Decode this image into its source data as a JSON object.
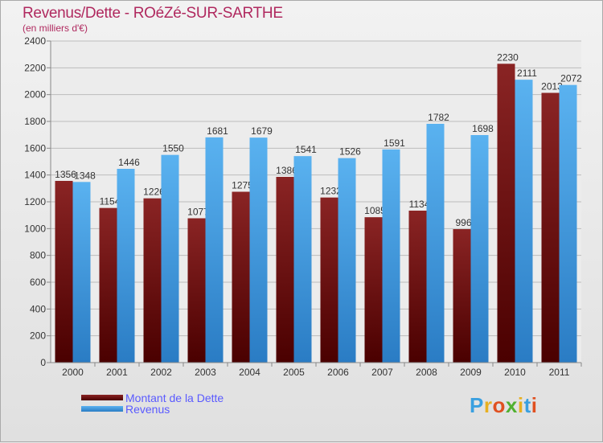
{
  "chart_data": {
    "type": "bar",
    "title": "Revenus/Dette - ROéZé-SUR-SARTHE",
    "subtitle": "(en milliers d'€)",
    "categories": [
      "2000",
      "2001",
      "2002",
      "2003",
      "2004",
      "2005",
      "2006",
      "2007",
      "2008",
      "2009",
      "2010",
      "2011"
    ],
    "series": [
      {
        "name": "Montant de la Dette",
        "color": "#7a0a0a",
        "values": [
          1356,
          1154,
          1226,
          1077,
          1275,
          1386,
          1232,
          1085,
          1134,
          996,
          2230,
          2013
        ]
      },
      {
        "name": "Revenus",
        "color": "#3d9be0",
        "values": [
          1348,
          1446,
          1550,
          1681,
          1679,
          1541,
          1526,
          1591,
          1782,
          1698,
          2111,
          2072
        ]
      }
    ],
    "ylim": [
      0,
      2400
    ],
    "yticks": [
      0,
      200,
      400,
      600,
      800,
      1000,
      1200,
      1400,
      1600,
      1800,
      2000,
      2200,
      2400
    ],
    "grid": true,
    "legend_position": "bottom-left"
  },
  "logo": {
    "text": "Proxiti",
    "letter_colors": [
      "#3aa0e0",
      "#e8b020",
      "#e05020",
      "#50b030",
      "#e8b020",
      "#3aa0e0",
      "#e05020"
    ]
  }
}
